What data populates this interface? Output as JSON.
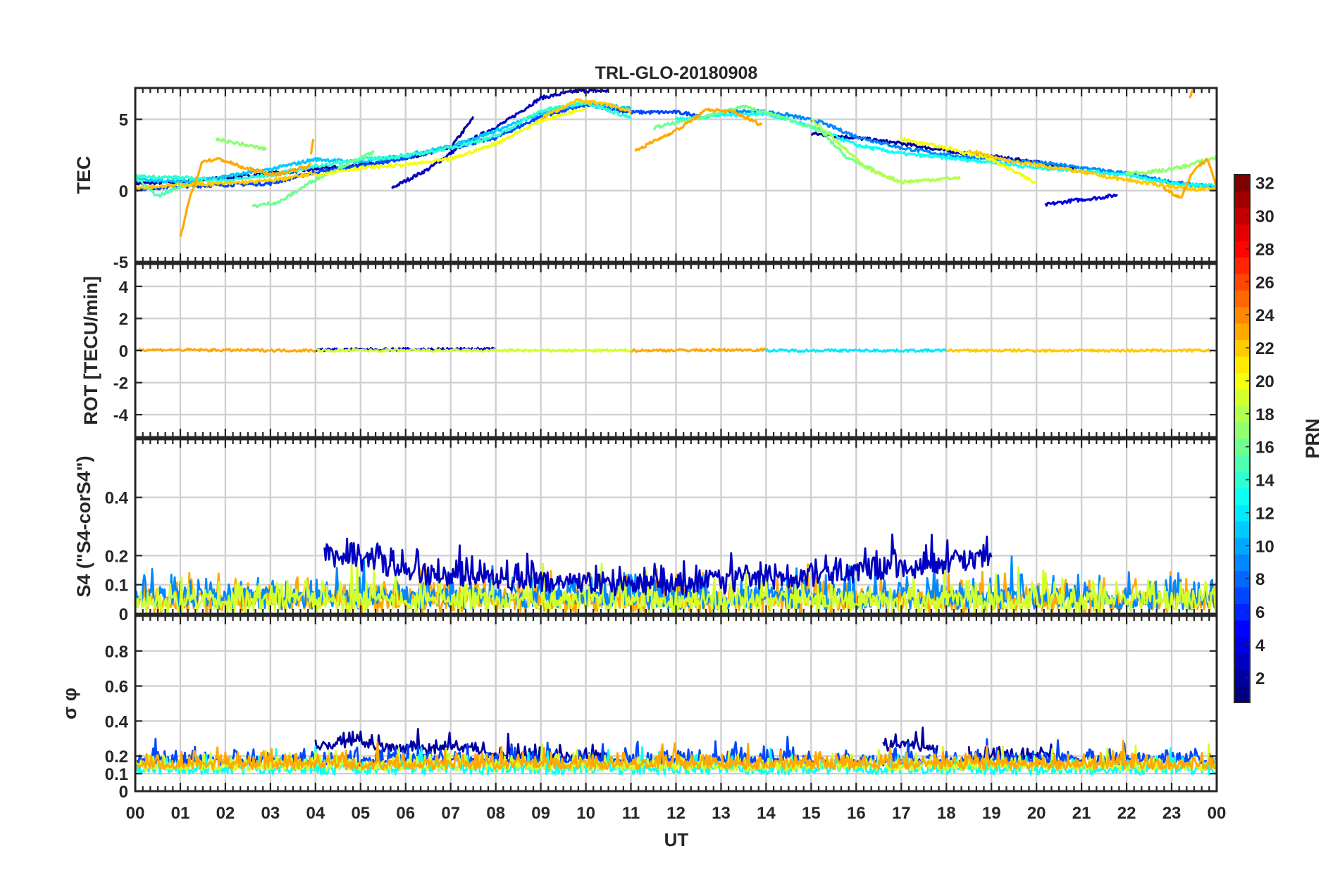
{
  "chart_data": {
    "type": "line",
    "title": "TRL-GLO-20180908",
    "xlabel": "UT",
    "x_ticks": [
      "00",
      "01",
      "02",
      "03",
      "04",
      "05",
      "06",
      "07",
      "08",
      "09",
      "10",
      "11",
      "12",
      "13",
      "14",
      "15",
      "16",
      "17",
      "18",
      "19",
      "20",
      "21",
      "22",
      "23",
      "00"
    ],
    "xlim": [
      0,
      24
    ],
    "grid": true,
    "colorbar": {
      "label": "PRN",
      "range": [
        1,
        32
      ],
      "ticks": [
        "2",
        "4",
        "6",
        "8",
        "10",
        "12",
        "14",
        "16",
        "18",
        "20",
        "22",
        "24",
        "26",
        "28",
        "30",
        "32"
      ],
      "colormap": "jet"
    },
    "panels": [
      {
        "ylabel": "TEC",
        "ylim": [
          -5,
          7.2
        ],
        "y_ticks": [
          "-5",
          "0",
          "5"
        ],
        "series": [
          {
            "prn": 2,
            "x": [
              0,
              1,
              2,
              3,
              4,
              5,
              6,
              7,
              7.5
            ],
            "values": [
              0.5,
              0.6,
              0.9,
              1.2,
              1.5,
              1.8,
              2.3,
              3.0,
              5.1
            ]
          },
          {
            "prn": 3,
            "x": [
              5.7,
              6.5,
              7.3,
              8.2,
              9,
              9.8,
              10.5
            ],
            "values": [
              0.2,
              1.5,
              3.3,
              4.8,
              6.5,
              7.0,
              7.0
            ]
          },
          {
            "prn": 2,
            "x": [
              15,
              16,
              17,
              18,
              19,
              20,
              20.9
            ],
            "values": [
              4.0,
              3.7,
              3.3,
              2.8,
              2.4,
              2.0,
              1.5
            ]
          },
          {
            "prn": 4,
            "x": [
              20.2,
              20.8,
              21.4,
              21.8
            ],
            "values": [
              -1.0,
              -0.7,
              -0.5,
              -0.3
            ]
          },
          {
            "prn": 7,
            "x": [
              0,
              1,
              2,
              3,
              4,
              5,
              6,
              7,
              8,
              9,
              10,
              11,
              12,
              12.5
            ],
            "values": [
              0.1,
              0.3,
              0.4,
              0.5,
              1.3,
              1.7,
              2.3,
              3.0,
              3.7,
              5.2,
              6.0,
              5.5,
              5.5,
              5.3
            ]
          },
          {
            "prn": 9,
            "x": [
              13,
              13.8,
              14.5,
              15.2,
              16,
              17,
              18,
              19,
              20,
              21,
              22,
              23,
              24
            ],
            "values": [
              5.5,
              5.6,
              5.3,
              4.8,
              3.8,
              3.0,
              2.5,
              2.2,
              2.0,
              1.6,
              1.2,
              0.6,
              0.2
            ]
          },
          {
            "prn": 11,
            "x": [
              0,
              1,
              2,
              3,
              4,
              5,
              6,
              7,
              8,
              9,
              10,
              11
            ],
            "values": [
              0.8,
              0.6,
              1.0,
              1.5,
              2.2,
              2.0,
              2.5,
              3.1,
              4.2,
              5.4,
              6.2,
              5.8
            ]
          },
          {
            "prn": 13,
            "x": [
              12,
              13,
              14,
              15,
              16,
              17,
              18,
              19,
              20,
              21,
              22,
              23,
              24
            ],
            "values": [
              5.0,
              5.3,
              5.4,
              4.5,
              3.2,
              2.6,
              2.3,
              2.0,
              1.6,
              1.4,
              1.1,
              0.5,
              0.3
            ]
          },
          {
            "prn": 14,
            "x": [
              0,
              1,
              2,
              3,
              4,
              5,
              6,
              7,
              8,
              9,
              10,
              11
            ],
            "values": [
              1.0,
              0.9,
              0.7,
              1.1,
              1.7,
              2.2,
              2.4,
              3.0,
              3.8,
              5.6,
              6.2,
              5.1
            ]
          },
          {
            "prn": 15,
            "x": [
              0,
              0.5,
              1,
              1.5
            ],
            "values": [
              0.9,
              -0.4,
              0.3,
              0.6
            ]
          },
          {
            "prn": 16,
            "x": [
              2.6,
              3.2,
              4.0,
              4.8,
              5.3
            ],
            "values": [
              -1.1,
              -0.8,
              0.8,
              2.0,
              2.7
            ]
          },
          {
            "prn": 16,
            "x": [
              11.5,
              12.5,
              13.5,
              14.5,
              15.2,
              15.8,
              16.4
            ],
            "values": [
              4.4,
              5.1,
              5.9,
              5.0,
              4.2,
              2.3,
              1.4
            ]
          },
          {
            "prn": 17,
            "x": [
              1.8,
              2.3,
              2.9
            ],
            "values": [
              3.6,
              3.3,
              2.9
            ]
          },
          {
            "prn": 17,
            "x": [
              22,
              22.8,
              23.3,
              23.8,
              24
            ],
            "values": [
              1.2,
              1.4,
              1.7,
              2.2,
              2.3
            ]
          },
          {
            "prn": 18,
            "x": [
              15,
              15.6,
              16.2,
              17,
              17.8,
              18.3
            ],
            "values": [
              5.0,
              3.4,
              1.6,
              0.6,
              0.8,
              0.9
            ]
          },
          {
            "prn": 20,
            "x": [
              17,
              18,
              19,
              20
            ],
            "values": [
              3.6,
              3.0,
              2.2,
              0.5
            ]
          },
          {
            "prn": 20,
            "x": [
              4,
              5,
              6,
              7,
              8,
              9,
              10
            ],
            "values": [
              1.1,
              1.6,
              1.8,
              2.2,
              3.3,
              4.9,
              5.8
            ]
          },
          {
            "prn": 22,
            "x": [
              0,
              1,
              2,
              3,
              4
            ],
            "values": [
              0.2,
              0.4,
              0.5,
              0.7,
              1.2
            ]
          },
          {
            "prn": 22,
            "x": [
              9,
              9.8,
              10.5,
              11
            ],
            "values": [
              5.1,
              6.3,
              6.1,
              5.5
            ]
          },
          {
            "prn": 22,
            "x": [
              18.5,
              19.5,
              20.5,
              21.5,
              22.5,
              23.5,
              24
            ],
            "values": [
              2.8,
              2.0,
              1.6,
              1.0,
              0.5,
              0.1,
              0.1
            ]
          },
          {
            "prn": 23,
            "x": [
              1.0,
              1.2,
              1.5,
              1.9,
              2.4,
              3.1,
              3.9
            ],
            "values": [
              -3.3,
              -0.6,
              2.1,
              2.2,
              1.6,
              1.1,
              1.8
            ]
          },
          {
            "prn": 23,
            "x": [
              11.1,
              11.6,
              12.1,
              12.7,
              13.3,
              13.9
            ],
            "values": [
              2.8,
              3.6,
              4.4,
              5.7,
              5.5,
              4.6
            ]
          },
          {
            "prn": 23,
            "x": [
              22.8,
              23.2,
              23.5,
              23.8,
              24
            ],
            "values": [
              0.2,
              -0.5,
              1.5,
              2.2,
              0.3
            ]
          },
          {
            "prn": 23,
            "x": [
              3.9,
              3.95
            ],
            "values": [
              2.5,
              3.5
            ]
          },
          {
            "prn": 23,
            "x": [
              23.4,
              23.5
            ],
            "values": [
              6.5,
              7.2
            ]
          }
        ]
      },
      {
        "ylabel": "ROT [TECU/min]",
        "ylim": [
          -5.4,
          5.4
        ],
        "y_ticks": [
          "-4",
          "-2",
          "0",
          "2",
          "4"
        ],
        "series": [
          {
            "prn": 23,
            "x": [
              0,
              4
            ],
            "values": [
              0.05,
              0.0
            ]
          },
          {
            "prn": 4,
            "x": [
              4,
              8
            ],
            "values": [
              0.05,
              0.1
            ]
          },
          {
            "prn": 19,
            "x": [
              4,
              11
            ],
            "values": [
              0.0,
              0.0
            ]
          },
          {
            "prn": 23,
            "x": [
              11,
              14
            ],
            "values": [
              0.0,
              0.05
            ]
          },
          {
            "prn": 12,
            "x": [
              14,
              18
            ],
            "values": [
              0.0,
              0.0
            ]
          },
          {
            "prn": 22,
            "x": [
              18,
              24
            ],
            "values": [
              0.0,
              0.0
            ]
          }
        ]
      },
      {
        "ylabel": "S4 (\"S4-corS4\")",
        "ylim": [
          0,
          0.6
        ],
        "y_ticks": [
          "0",
          "0.1",
          "0.2",
          "0.4"
        ],
        "series": [
          {
            "prn": 23,
            "x": [
              0,
              24
            ],
            "values": [
              0.04,
              0.04
            ]
          },
          {
            "prn": 9,
            "x": [
              0,
              24
            ],
            "values": [
              0.05,
              0.05
            ]
          },
          {
            "prn": 19,
            "x": [
              0,
              24
            ],
            "values": [
              0.04,
              0.04
            ]
          },
          {
            "prn": 3,
            "x": [
              4.2,
              7,
              12,
              17.5,
              19
            ],
            "values": [
              0.2,
              0.12,
              0.09,
              0.16,
              0.2
            ]
          }
        ]
      },
      {
        "ylabel": "σ φ",
        "ylim": [
          0,
          1.0
        ],
        "y_ticks": [
          "0",
          "0.1",
          "0.2",
          "0.4",
          "0.6",
          "0.8"
        ],
        "series": [
          {
            "prn": 2,
            "x": [
              4.0,
              4.5,
              5.0,
              5.5,
              6,
              6.5,
              7,
              7.5,
              8,
              9,
              10,
              10.5
            ],
            "values": [
              0.25,
              0.27,
              0.28,
              0.25,
              0.24,
              0.23,
              0.25,
              0.24,
              0.2,
              0.19,
              0.19,
              0.2
            ]
          },
          {
            "prn": 2,
            "x": [
              16.6,
              17,
              17.5,
              17.8
            ],
            "values": [
              0.25,
              0.27,
              0.25,
              0.24
            ]
          },
          {
            "prn": 2,
            "x": [
              18.5,
              19,
              19.5,
              20,
              20.4
            ],
            "values": [
              0.18,
              0.2,
              0.19,
              0.2,
              0.19
            ]
          },
          {
            "prn": 7,
            "x": [
              0,
              24
            ],
            "values": [
              0.17,
              0.17
            ]
          },
          {
            "prn": 13,
            "x": [
              0,
              24
            ],
            "values": [
              0.12,
              0.12
            ]
          },
          {
            "prn": 19,
            "x": [
              0,
              24
            ],
            "values": [
              0.14,
              0.14
            ]
          },
          {
            "prn": 23,
            "x": [
              0,
              24
            ],
            "values": [
              0.15,
              0.15
            ]
          }
        ]
      }
    ]
  }
}
